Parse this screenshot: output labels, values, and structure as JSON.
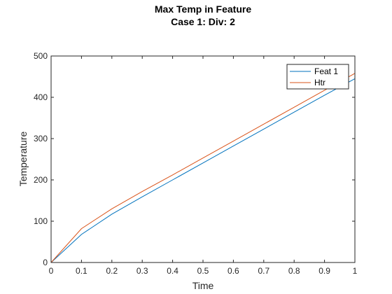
{
  "chart_data": {
    "type": "line",
    "title": "Max Temp in Feature",
    "subtitle": "Case 1: Div: 2",
    "xlabel": "Time",
    "ylabel": "Temperature",
    "xlim": [
      0,
      1
    ],
    "ylim": [
      0,
      500
    ],
    "x_ticks": [
      "0",
      "0.1",
      "0.2",
      "0.3",
      "0.4",
      "0.5",
      "0.6",
      "0.7",
      "0.8",
      "0.9",
      "1"
    ],
    "y_ticks": [
      "0",
      "100",
      "200",
      "300",
      "400",
      "500"
    ],
    "grid": false,
    "legend_position": "top-right",
    "series": [
      {
        "name": "Feat 1",
        "color": "#0072BD",
        "x": [
          0,
          0.1,
          0.2,
          0.3,
          0.4,
          0.5,
          0.6,
          0.7,
          0.8,
          0.9,
          1.0
        ],
        "y": [
          0,
          68,
          117,
          159,
          200,
          241,
          282,
          323,
          364,
          405,
          445
        ]
      },
      {
        "name": "Htr",
        "color": "#D95319",
        "x": [
          0,
          0.1,
          0.2,
          0.3,
          0.4,
          0.5,
          0.6,
          0.7,
          0.8,
          0.9,
          1.0
        ],
        "y": [
          0,
          82,
          130,
          172,
          212,
          253,
          294,
          335,
          376,
          417,
          458
        ]
      }
    ]
  }
}
